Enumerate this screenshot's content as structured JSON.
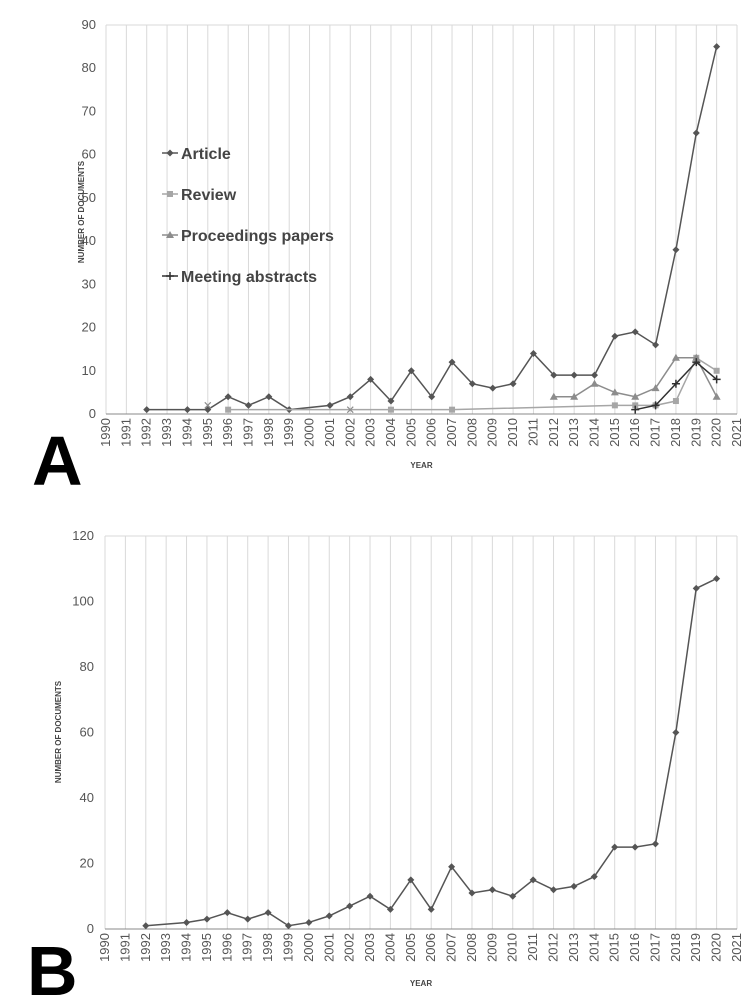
{
  "figure": {
    "panel_a_label": "A",
    "panel_b_label": "B"
  },
  "chart_data": [
    {
      "type": "line",
      "panel": "A",
      "xlabel": "YEAR",
      "ylabel": "NUMBER OF DOCUMENTS",
      "xlim": [
        1990,
        2021
      ],
      "ylim": [
        0,
        90
      ],
      "x_ticks": [
        "1990",
        "1991",
        "1992",
        "1993",
        "1994",
        "1995",
        "1996",
        "1997",
        "1998",
        "1999",
        "2000",
        "2001",
        "2002",
        "2003",
        "2004",
        "2005",
        "2006",
        "2007",
        "2008",
        "2009",
        "2010",
        "2011",
        "2012",
        "2013",
        "2014",
        "2015",
        "2016",
        "2017",
        "2018",
        "2019",
        "2020",
        "2021"
      ],
      "y_ticks": [
        "0",
        "10",
        "20",
        "30",
        "40",
        "50",
        "60",
        "70",
        "80",
        "90"
      ],
      "grid": "vertical",
      "legend_position": "upper-left",
      "series": [
        {
          "name": "Article",
          "color": "#555555",
          "marker": "diamond",
          "points": [
            [
              1992,
              1
            ],
            [
              1994,
              1
            ],
            [
              1995,
              1
            ],
            [
              1996,
              4
            ],
            [
              1997,
              2
            ],
            [
              1998,
              4
            ],
            [
              1999,
              1
            ],
            [
              2001,
              2
            ],
            [
              2002,
              4
            ],
            [
              2003,
              8
            ],
            [
              2004,
              3
            ],
            [
              2005,
              10
            ],
            [
              2006,
              4
            ],
            [
              2007,
              12
            ],
            [
              2008,
              7
            ],
            [
              2009,
              6
            ],
            [
              2010,
              7
            ],
            [
              2011,
              14
            ],
            [
              2012,
              9
            ],
            [
              2013,
              9
            ],
            [
              2014,
              9
            ],
            [
              2015,
              18
            ],
            [
              2016,
              19
            ],
            [
              2017,
              16
            ],
            [
              2018,
              38
            ],
            [
              2019,
              65
            ],
            [
              2020,
              85
            ]
          ]
        },
        {
          "name": "Review",
          "color": "#a6a6a6",
          "marker": "square",
          "points": [
            [
              1996,
              1
            ],
            [
              2004,
              1
            ],
            [
              2007,
              1
            ],
            [
              2015,
              2
            ],
            [
              2016,
              2
            ],
            [
              2017,
              2
            ],
            [
              2018,
              3
            ],
            [
              2019,
              13
            ],
            [
              2020,
              10
            ]
          ]
        },
        {
          "name": "Proceedings papers",
          "color": "#8c8c8c",
          "marker": "triangle",
          "points": [
            [
              2012,
              4
            ],
            [
              2013,
              4
            ],
            [
              2014,
              7
            ],
            [
              2015,
              5
            ],
            [
              2016,
              4
            ],
            [
              2017,
              6
            ],
            [
              2018,
              13
            ],
            [
              2019,
              13
            ],
            [
              2020,
              4
            ]
          ]
        },
        {
          "name": "Meeting abstracts",
          "color": "#303030",
          "marker": "plus",
          "points": [
            [
              2016,
              1
            ],
            [
              2017,
              2
            ],
            [
              2018,
              7
            ],
            [
              2019,
              12
            ],
            [
              2020,
              8
            ]
          ]
        },
        {
          "name": "",
          "color": "#8c8c8c",
          "marker": "x",
          "points": [
            [
              1995,
              2
            ],
            [
              2002,
              1
            ]
          ]
        }
      ]
    },
    {
      "type": "line",
      "panel": "B",
      "xlabel": "YEAR",
      "ylabel": "NUMBER OF DOCUMENTS",
      "xlim": [
        1990,
        2021
      ],
      "ylim": [
        0,
        120
      ],
      "x_ticks": [
        "1990",
        "1991",
        "1992",
        "1993",
        "1994",
        "1995",
        "1996",
        "1997",
        "1998",
        "1999",
        "2000",
        "2001",
        "2002",
        "2003",
        "2004",
        "2005",
        "2006",
        "2007",
        "2008",
        "2009",
        "2010",
        "2011",
        "2012",
        "2013",
        "2014",
        "2015",
        "2016",
        "2017",
        "2018",
        "2019",
        "2020",
        "2021"
      ],
      "y_ticks": [
        "0",
        "20",
        "40",
        "60",
        "80",
        "100",
        "120"
      ],
      "grid": "vertical",
      "series": [
        {
          "name": "",
          "color": "#555555",
          "marker": "diamond",
          "points": [
            [
              1992,
              1
            ],
            [
              1994,
              2
            ],
            [
              1995,
              3
            ],
            [
              1996,
              5
            ],
            [
              1997,
              3
            ],
            [
              1998,
              5
            ],
            [
              1999,
              1
            ],
            [
              2000,
              2
            ],
            [
              2001,
              4
            ],
            [
              2002,
              7
            ],
            [
              2003,
              10
            ],
            [
              2004,
              6
            ],
            [
              2005,
              15
            ],
            [
              2006,
              6
            ],
            [
              2007,
              19
            ],
            [
              2008,
              11
            ],
            [
              2009,
              12
            ],
            [
              2010,
              10
            ],
            [
              2011,
              15
            ],
            [
              2012,
              12
            ],
            [
              2013,
              13
            ],
            [
              2014,
              16
            ],
            [
              2015,
              25
            ],
            [
              2016,
              25
            ],
            [
              2017,
              26
            ],
            [
              2018,
              60
            ],
            [
              2019,
              104
            ],
            [
              2020,
              107
            ]
          ]
        }
      ]
    }
  ]
}
